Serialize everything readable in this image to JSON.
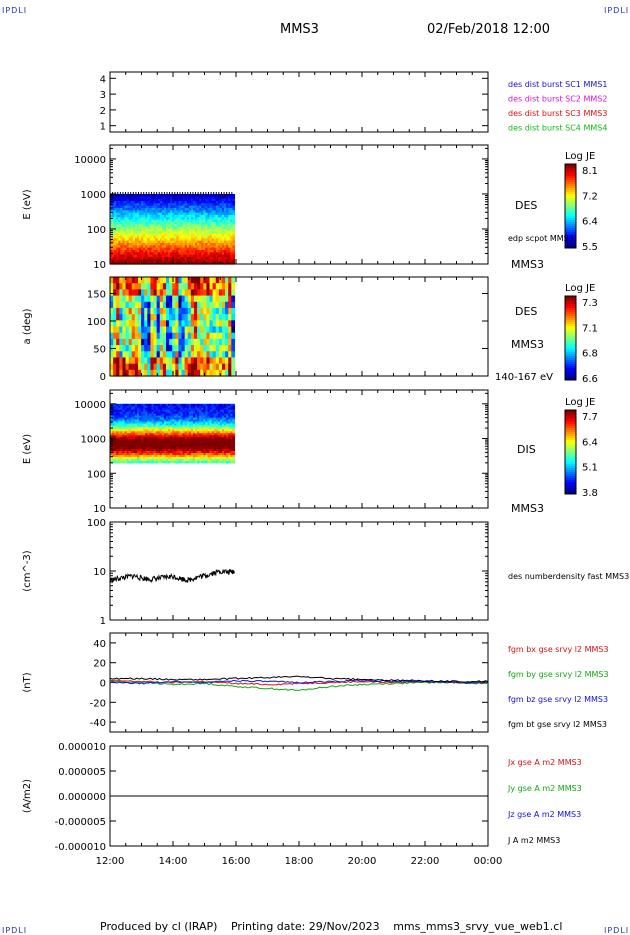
{
  "header": {
    "spacecraft": "MMS3",
    "datetime": "02/Feb/2018 12:00",
    "corner_label": "IPDLI"
  },
  "footer": {
    "produced_by": "Produced by cl (IRAP)",
    "printing_date": "Printing date: 29/Nov/2023",
    "filename": "mms_mms3_srvy_vue_web1.cl"
  },
  "chart_data": [
    {
      "type": "line",
      "panel": "spacecraft-availability",
      "ylabel": "",
      "ylim": [
        0.6,
        4.4
      ],
      "yticks": [
        "4",
        "3",
        "2",
        "1"
      ],
      "ytick_values": [
        4,
        3,
        2,
        1
      ],
      "legend": [
        {
          "text": "des dist burst SC1 MMS1",
          "color": "#1010dd"
        },
        {
          "text": "des dist burst SC2 MMS2",
          "color": "#dd10dd"
        },
        {
          "text": "des dist burst SC3 MMS3",
          "color": "#dd1010"
        },
        {
          "text": "des dist burst SC4 MMS4",
          "color": "#10bb10"
        }
      ]
    },
    {
      "type": "heatmap",
      "panel": "des-energy-spectrogram",
      "ylabel": "E (eV)",
      "scale": "log",
      "ylim": [
        10,
        25000
      ],
      "yticks": [
        "10000",
        "1000",
        "100",
        "10"
      ],
      "ytick_values": [
        10000,
        1000,
        100,
        10
      ],
      "x_coverage_hours": [
        12.0,
        15.95
      ],
      "energy_range_ev": [
        10,
        1000
      ],
      "instrument_label": "DES",
      "overlay_label": "edp scpot MMS3",
      "spacecraft_label": "MMS3",
      "colorbar": {
        "title": "Log JE",
        "ticks": [
          "8.1",
          "7.2",
          "6.4",
          "5.5"
        ],
        "range": [
          5.5,
          8.1
        ]
      }
    },
    {
      "type": "heatmap",
      "panel": "des-pitch-angle",
      "ylabel": "a (deg)",
      "ylim": [
        0,
        180
      ],
      "yticks": [
        "150",
        "100",
        "50",
        "0"
      ],
      "ytick_values": [
        150,
        100,
        50,
        0
      ],
      "x_coverage_hours": [
        12.0,
        15.95
      ],
      "instrument_label": "DES",
      "spacecraft_label": "MMS3",
      "energy_band": "140-167 eV",
      "colorbar": {
        "title": "Log JE",
        "ticks": [
          "7.3",
          "7.1",
          "6.8",
          "6.6"
        ],
        "range": [
          6.6,
          7.3
        ]
      }
    },
    {
      "type": "heatmap",
      "panel": "dis-energy-spectrogram",
      "ylabel": "E (eV)",
      "scale": "log",
      "ylim": [
        10,
        25000
      ],
      "yticks": [
        "10000",
        "1000",
        "100",
        "10"
      ],
      "ytick_values": [
        10000,
        1000,
        100,
        10
      ],
      "x_coverage_hours": [
        12.0,
        15.95
      ],
      "energy_range_ev": [
        200,
        10000
      ],
      "peak_energy_ev": 700,
      "instrument_label": "DIS",
      "spacecraft_label": "MMS3",
      "colorbar": {
        "title": "Log JE",
        "ticks": [
          "7.7",
          "6.4",
          "5.1",
          "3.8"
        ],
        "range": [
          3.8,
          7.7
        ]
      }
    },
    {
      "type": "line",
      "panel": "density",
      "ylabel": "(cm^-3)",
      "scale": "log",
      "ylim": [
        1,
        100
      ],
      "yticks": [
        "100",
        "10",
        "1"
      ],
      "ytick_values": [
        100,
        10,
        1
      ],
      "series": [
        {
          "name": "des numberdensity fast MMS3",
          "color": "#000000",
          "x": [
            12.0,
            12.25,
            12.5,
            12.75,
            13.0,
            13.25,
            13.5,
            13.75,
            14.0,
            14.25,
            14.5,
            14.75,
            15.0,
            15.25,
            15.5,
            15.75,
            15.95
          ],
          "values": [
            6.5,
            7.0,
            7.5,
            8.0,
            7.2,
            6.8,
            7.0,
            7.5,
            7.8,
            7.0,
            6.5,
            7.5,
            8.0,
            9.0,
            10.0,
            9.5,
            9.8
          ]
        }
      ]
    },
    {
      "type": "line",
      "panel": "magnetic-field",
      "ylabel": "(nT)",
      "ylim": [
        -50,
        50
      ],
      "yticks": [
        "40",
        "20",
        "0",
        "-20",
        "-40"
      ],
      "ytick_values": [
        40,
        20,
        0,
        -20,
        -40
      ],
      "x": [
        12,
        13,
        14,
        15,
        16,
        17,
        18,
        19,
        20,
        21,
        22,
        23,
        24
      ],
      "series": [
        {
          "name": "fgm bx gse srvy l2 MMS3",
          "color": "#dd1010",
          "values": [
            2,
            1,
            0,
            1,
            -1,
            -2,
            -1,
            0,
            1,
            0,
            1,
            0,
            -1
          ]
        },
        {
          "name": "fgm by gse srvy l2 MMS3",
          "color": "#10aa10",
          "values": [
            1,
            0,
            -2,
            -1,
            -4,
            -6,
            -8,
            -4,
            -2,
            -1,
            0,
            0,
            -1
          ]
        },
        {
          "name": "fgm bz gse srvy l2 MMS3",
          "color": "#1010dd",
          "values": [
            0,
            -1,
            1,
            0,
            2,
            1,
            0,
            1,
            2,
            1,
            1,
            0,
            0
          ]
        },
        {
          "name": "fgm bt gse srvy l2 MMS3",
          "color": "#000000",
          "values": [
            4,
            4,
            3,
            3,
            4,
            5,
            6,
            4,
            3,
            2,
            2,
            1,
            1
          ]
        }
      ]
    },
    {
      "type": "line",
      "panel": "current-density",
      "ylabel": "(A/m2)",
      "ylim": [
        -1e-05,
        1e-05
      ],
      "yticks": [
        "0.000010",
        "0.000005",
        "0.000000",
        "-0.000005",
        "-0.000010"
      ],
      "ytick_values": [
        1e-05,
        5e-06,
        0,
        -5e-06,
        -1e-05
      ],
      "x": [
        12,
        14,
        16,
        18,
        20,
        22,
        24
      ],
      "series": [
        {
          "name": "Jx gse A m2 MMS3",
          "color": "#dd1010",
          "values": [
            0,
            0,
            0,
            0,
            0,
            0,
            0
          ]
        },
        {
          "name": "Jy gse A m2 MMS3",
          "color": "#10aa10",
          "values": [
            0,
            0,
            0,
            0,
            0,
            0,
            0
          ]
        },
        {
          "name": "Jz gse A m2 MMS3",
          "color": "#1010dd",
          "values": [
            0,
            0,
            0,
            0,
            0,
            0,
            0
          ]
        },
        {
          "name": "J A m2 MMS3",
          "color": "#000000",
          "values": [
            0,
            0,
            0,
            0,
            0,
            0,
            0
          ]
        }
      ],
      "xticks": [
        "12:00",
        "14:00",
        "16:00",
        "18:00",
        "20:00",
        "22:00",
        "00:00"
      ],
      "xlim_hours": [
        12,
        24
      ]
    }
  ]
}
